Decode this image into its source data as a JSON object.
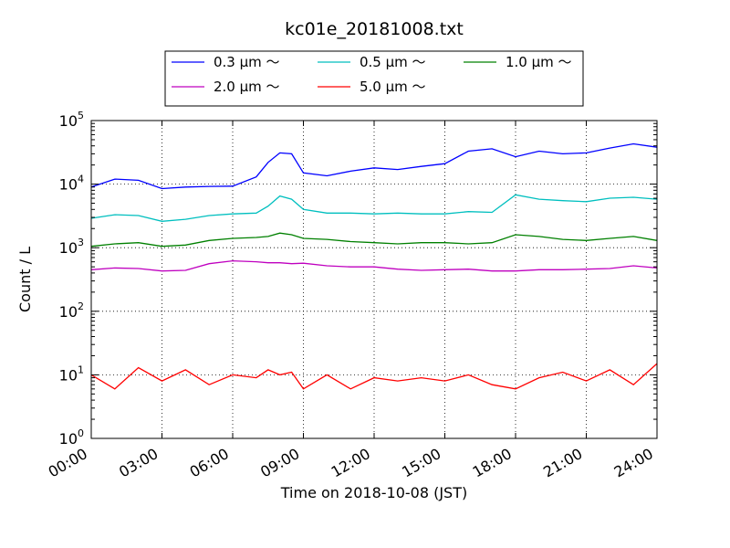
{
  "chart_data": {
    "type": "line",
    "title": "kc01e_20181008.txt",
    "xlabel": "Time on 2018-10-08 (JST)",
    "ylabel": "Count / L",
    "yscale": "log",
    "ylim": [
      1,
      100000
    ],
    "xlim": [
      "00:00",
      "24:00"
    ],
    "xticks": [
      "00:00",
      "03:00",
      "06:00",
      "09:00",
      "12:00",
      "15:00",
      "18:00",
      "21:00",
      "24:00"
    ],
    "yticks": [
      {
        "base": "10",
        "exp": "0",
        "value": 1
      },
      {
        "base": "10",
        "exp": "1",
        "value": 10
      },
      {
        "base": "10",
        "exp": "2",
        "value": 100
      },
      {
        "base": "10",
        "exp": "3",
        "value": 1000
      },
      {
        "base": "10",
        "exp": "4",
        "value": 10000
      },
      {
        "base": "10",
        "exp": "5",
        "value": 100000
      }
    ],
    "grid": true,
    "legend_position": "top-center",
    "x_hours": [
      0,
      1,
      2,
      3,
      4,
      5,
      6,
      7,
      7.5,
      8,
      8.5,
      9,
      10,
      11,
      12,
      13,
      14,
      15,
      16,
      17,
      18,
      19,
      20,
      21,
      22,
      23,
      24
    ],
    "series": [
      {
        "name": "0.3 μm ～",
        "color": "#0000ff",
        "values": [
          9000,
          12000,
          11500,
          8500,
          9000,
          9200,
          9300,
          13000,
          22000,
          31000,
          30000,
          15000,
          13500,
          16000,
          18000,
          17000,
          19000,
          21000,
          33000,
          36000,
          27000,
          33000,
          30000,
          31000,
          37000,
          43000,
          38000
        ]
      },
      {
        "name": "0.5 μm ～",
        "color": "#00bfbf",
        "values": [
          2900,
          3300,
          3200,
          2600,
          2800,
          3200,
          3400,
          3500,
          4500,
          6500,
          5800,
          4000,
          3500,
          3500,
          3400,
          3500,
          3400,
          3400,
          3700,
          3600,
          6800,
          5800,
          5500,
          5300,
          6000,
          6200,
          5800
        ]
      },
      {
        "name": "1.0 μm ～",
        "color": "#008000",
        "values": [
          1050,
          1150,
          1200,
          1050,
          1100,
          1300,
          1400,
          1450,
          1500,
          1700,
          1600,
          1400,
          1350,
          1250,
          1200,
          1150,
          1200,
          1200,
          1150,
          1200,
          1600,
          1500,
          1350,
          1300,
          1400,
          1500,
          1300
        ]
      },
      {
        "name": "2.0 μm ～",
        "color": "#bf00bf",
        "values": [
          450,
          480,
          470,
          430,
          440,
          560,
          620,
          600,
          580,
          580,
          560,
          570,
          520,
          500,
          500,
          460,
          440,
          450,
          460,
          430,
          430,
          450,
          450,
          460,
          470,
          520,
          480
        ]
      },
      {
        "name": "5.0 μm ～",
        "color": "#ff0000",
        "values": [
          10,
          6,
          13,
          8,
          12,
          7,
          10,
          9,
          12,
          10,
          11,
          6,
          10,
          6,
          9,
          8,
          9,
          8,
          10,
          7,
          6,
          9,
          11,
          8,
          12,
          7,
          15
        ]
      }
    ]
  }
}
